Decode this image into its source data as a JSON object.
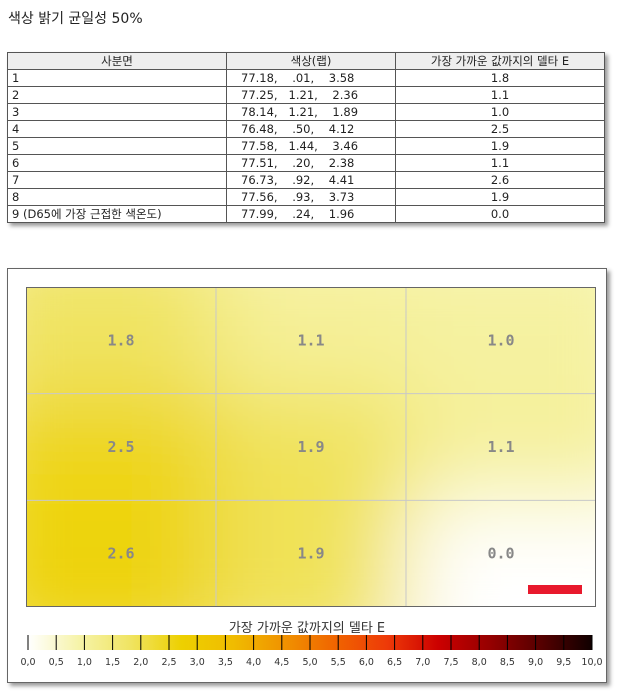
{
  "title": "색상 밝기 균일성 50%",
  "table": {
    "headers": [
      "사분면",
      "색상(랩)",
      "가장 가까운 값까지의 델타 E"
    ],
    "rows": [
      [
        "1",
        "77.18,    .01,    3.58",
        "1.8"
      ],
      [
        "2",
        "77.25,   1.21,    2.36",
        "1.1"
      ],
      [
        "3",
        "78.14,   1.21,    1.89",
        "1.0"
      ],
      [
        "4",
        "76.48,    .50,    4.12",
        "2.5"
      ],
      [
        "5",
        "77.58,   1.44,    3.46",
        "1.9"
      ],
      [
        "6",
        "77.51,    .20,    2.38",
        "1.1"
      ],
      [
        "7",
        "76.73,    .92,    4.41",
        "2.6"
      ],
      [
        "8",
        "77.56,    .93,    3.73",
        "1.9"
      ],
      [
        "9 (D65에 가장 근접한 색온도)",
        "77.99,    .24,    1.96",
        "0.0"
      ]
    ]
  },
  "chart_data": {
    "type": "heatmap",
    "grid": [
      [
        1.8,
        1.1,
        1.0
      ],
      [
        2.5,
        1.9,
        1.1
      ],
      [
        2.6,
        1.9,
        0.0
      ]
    ],
    "labels": [
      [
        "1.8",
        "1.1",
        "1.0"
      ],
      [
        "2.5",
        "1.9",
        "1.1"
      ],
      [
        "2.6",
        "1.9",
        "0.0"
      ]
    ],
    "colorbar": {
      "title": "가장 가까운 값까지의 델타 E",
      "range": [
        0,
        10
      ],
      "ticks": [
        "0,0",
        "0,5",
        "1,0",
        "1,5",
        "2,0",
        "2,5",
        "3,0",
        "3,5",
        "4,0",
        "4,5",
        "5,0",
        "5,5",
        "6,0",
        "6,5",
        "7,0",
        "7,5",
        "8,0",
        "8,5",
        "9,0",
        "9,5",
        "10,0"
      ],
      "colors": [
        "#ffffff",
        "#f6f3a8",
        "#f0e462",
        "#edd000",
        "#f0bc00",
        "#f09200",
        "#f06400",
        "#ee3a08",
        "#cc0000",
        "#960000",
        "#560000",
        "#100000"
      ]
    },
    "marker_color": "#e8192c"
  }
}
